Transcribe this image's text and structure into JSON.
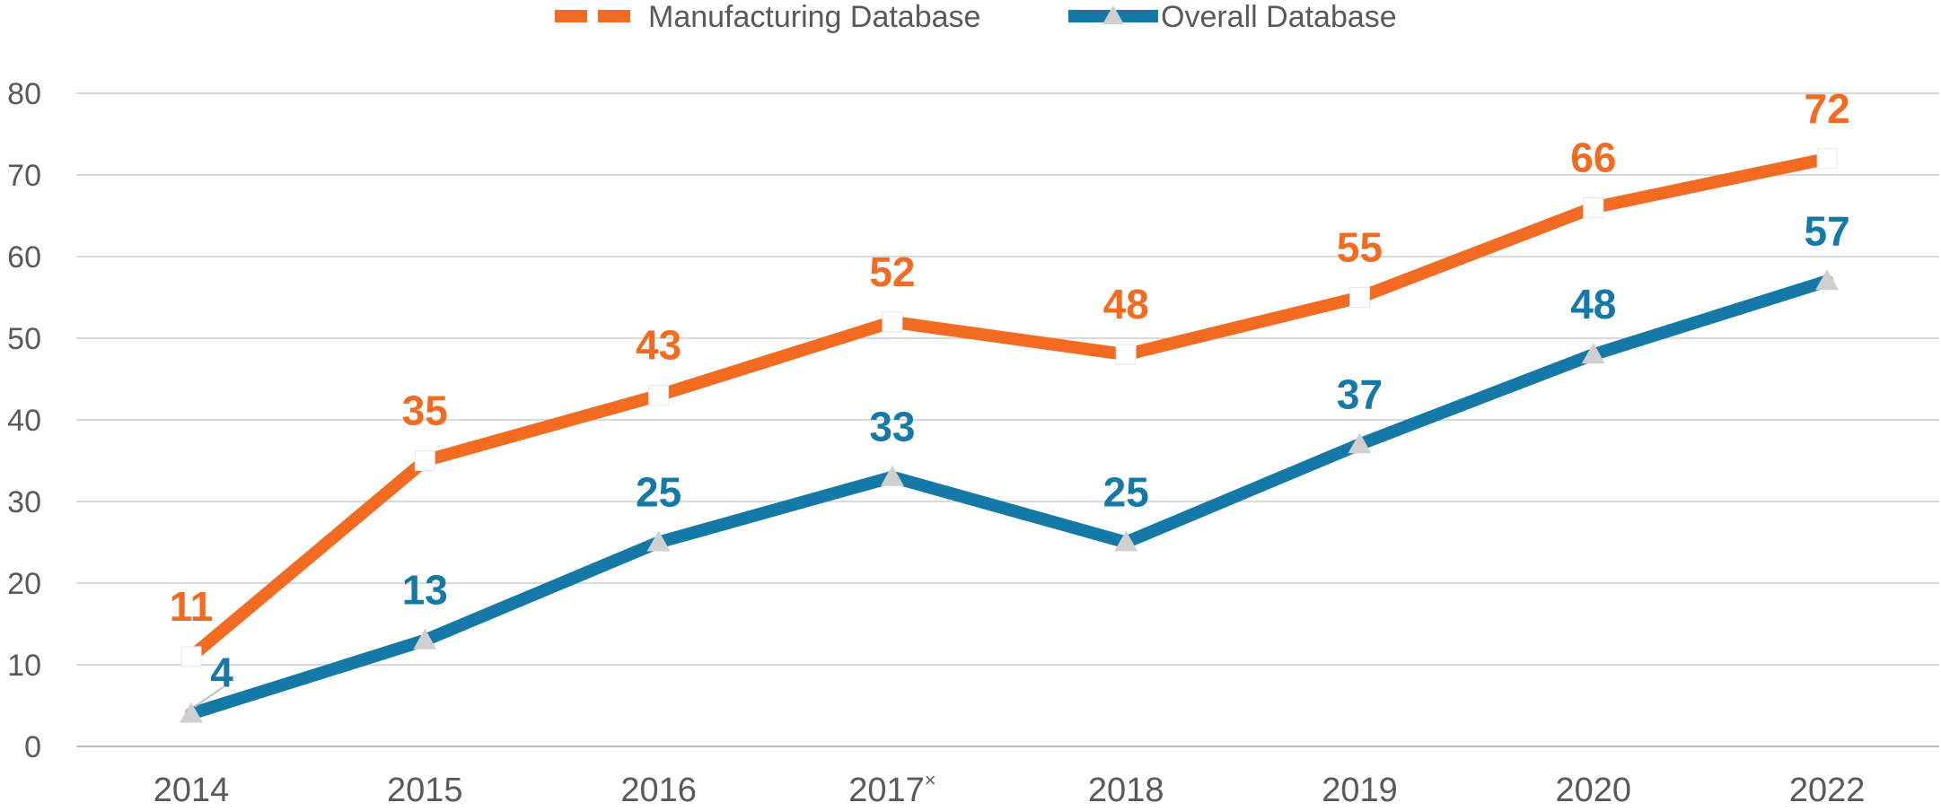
{
  "chart_data": {
    "type": "line",
    "categories": [
      "2014",
      "2015",
      "2016",
      "2017",
      "2018",
      "2019",
      "2020",
      "2022"
    ],
    "category_marks": [
      "",
      "",
      "",
      "×",
      "",
      "",
      "",
      ""
    ],
    "series": [
      {
        "name": "Manufacturing Database",
        "values": [
          11,
          35,
          43,
          52,
          48,
          55,
          66,
          72
        ],
        "color": "#F26B21",
        "marker": "square"
      },
      {
        "name": "Overall Database",
        "values": [
          4,
          13,
          25,
          33,
          25,
          37,
          48,
          57
        ],
        "color": "#1479A6",
        "marker": "triangle"
      }
    ],
    "y_ticks": [
      0,
      10,
      20,
      30,
      40,
      50,
      60,
      70,
      80
    ],
    "ylim": [
      0,
      80
    ],
    "grid": true,
    "legend_position": "top-center",
    "title": "",
    "xlabel": "",
    "ylabel": ""
  }
}
